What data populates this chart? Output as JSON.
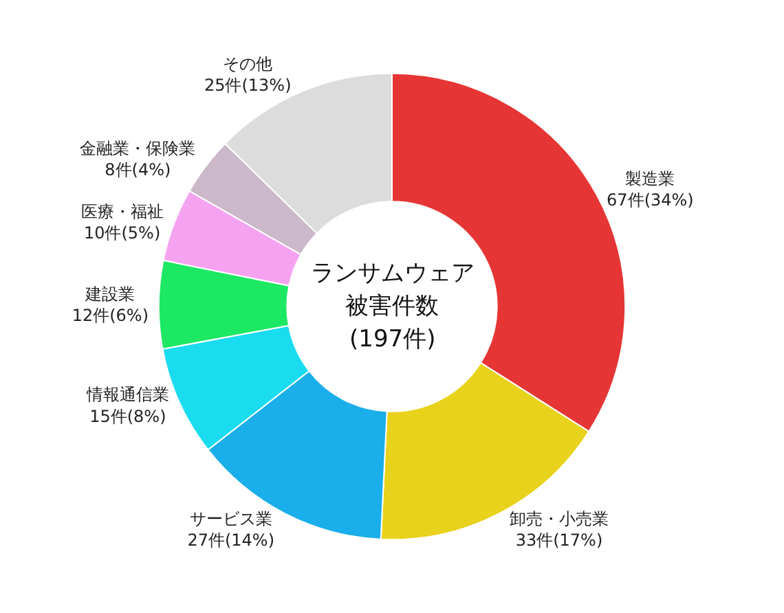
{
  "chart_data": {
    "type": "donut",
    "categories": [
      "製造業",
      "卸売・小売業",
      "サービス業",
      "情報通信業",
      "建設業",
      "医療・福祉",
      "金融業・保険業",
      "その他"
    ],
    "values": [
      67,
      33,
      27,
      15,
      12,
      10,
      8,
      25
    ],
    "value_labels": [
      "67件(34%)",
      "33件(17%)",
      "27件(14%)",
      "15件(8%)",
      "12件(6%)",
      "10件(5%)",
      "8件(4%)",
      "25件(13%)"
    ],
    "colors": [
      "#e63535",
      "#e9d21c",
      "#1aaeea",
      "#1adcef",
      "#1de864",
      "#f5a3f0",
      "#cbb8c8",
      "#dcdcdc"
    ],
    "annotations": [
      "ランサムウェア",
      "被害件数",
      "(197件)"
    ],
    "legend": false
  }
}
